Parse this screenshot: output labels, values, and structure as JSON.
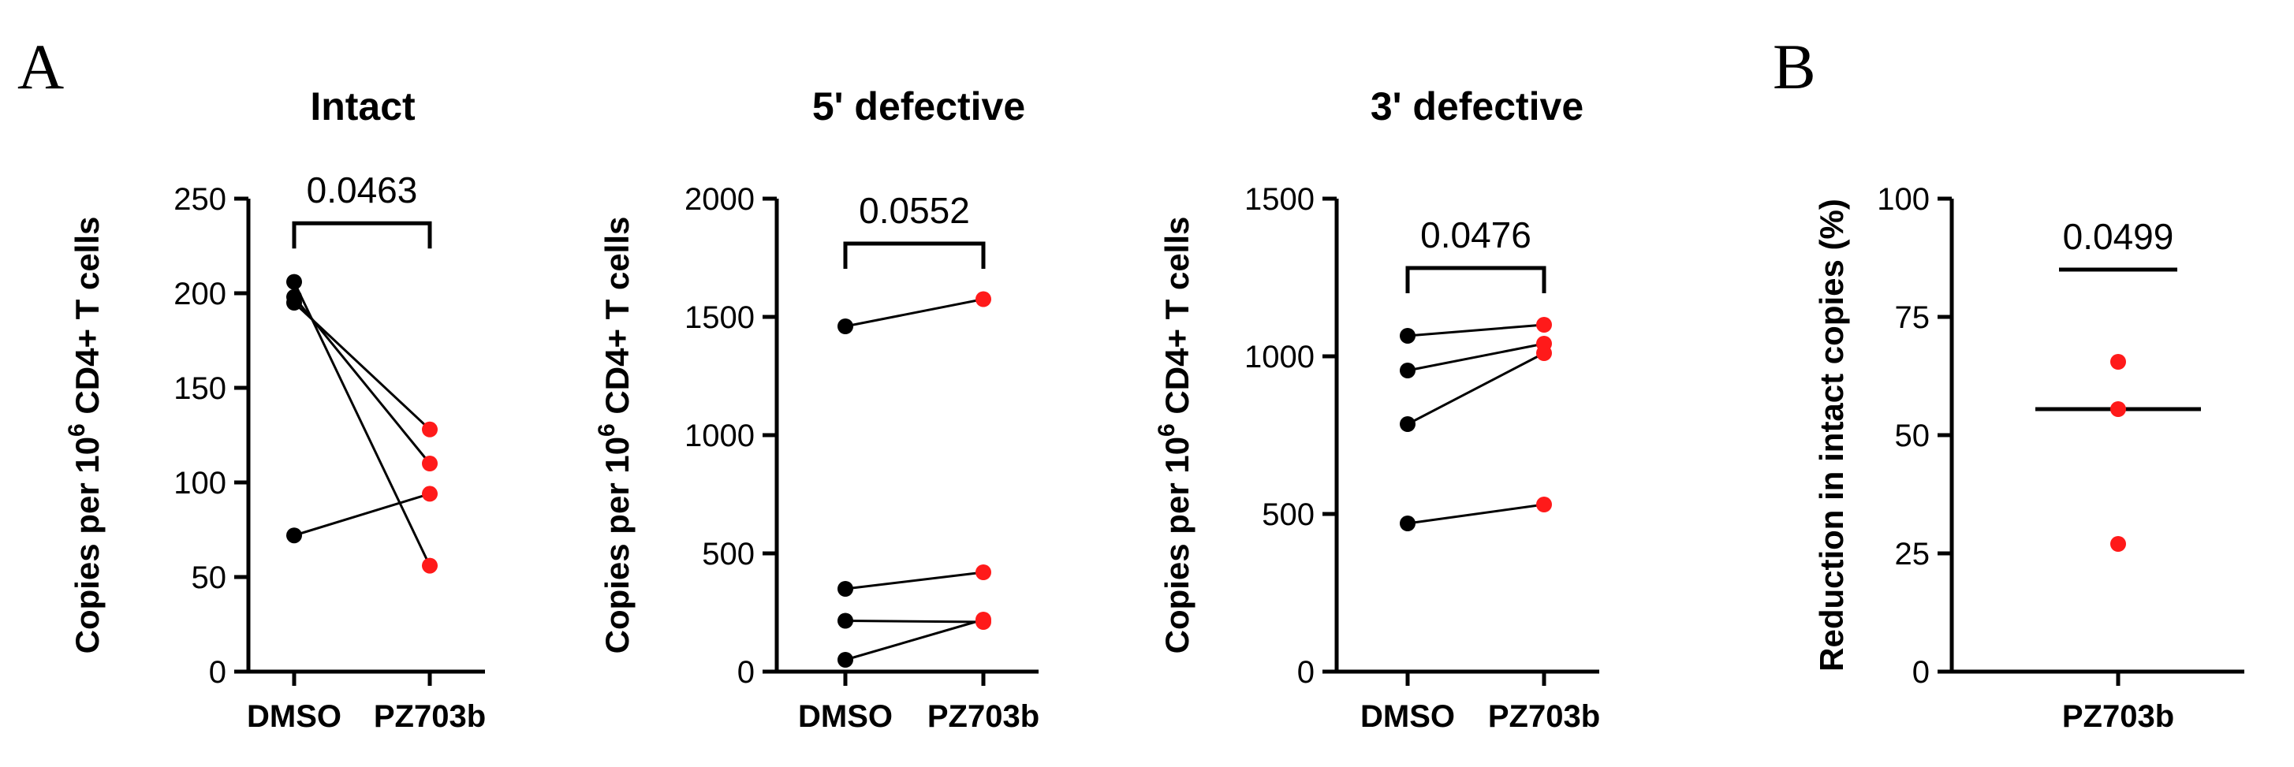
{
  "panel_letters": {
    "a": "A",
    "b": "B"
  },
  "colors": {
    "dmso": "#000000",
    "pz703b": "#ff1a1a",
    "axis": "#000000"
  },
  "chart_data": [
    {
      "type": "scatter",
      "subtype": "paired",
      "title": "Intact",
      "ylabel": "Copies per 10⁶ CD4+ T cells",
      "ylim": [
        0,
        250
      ],
      "yticks": [
        0,
        50,
        100,
        150,
        200,
        250
      ],
      "categories": [
        "DMSO",
        "PZ703b"
      ],
      "pairs": [
        [
          206,
          56
        ],
        [
          198,
          110
        ],
        [
          195,
          128
        ],
        [
          72,
          94
        ]
      ],
      "p_value": "0.0463",
      "bracket_y": 237
    },
    {
      "type": "scatter",
      "subtype": "paired",
      "title": "5' defective",
      "ylabel": "Copies per 10⁶ CD4+ T cells",
      "ylim": [
        0,
        2000
      ],
      "yticks": [
        0,
        500,
        1000,
        1500,
        2000
      ],
      "categories": [
        "DMSO",
        "PZ703b"
      ],
      "pairs": [
        [
          1460,
          1575
        ],
        [
          350,
          420
        ],
        [
          215,
          210
        ],
        [
          50,
          220
        ]
      ],
      "p_value": "0.0552",
      "bracket_y": 1810
    },
    {
      "type": "scatter",
      "subtype": "paired",
      "title": "3' defective",
      "ylabel": "Copies per 10⁶ CD4+ T cells",
      "ylim": [
        0,
        1500
      ],
      "yticks": [
        0,
        500,
        1000,
        1500
      ],
      "categories": [
        "DMSO",
        "PZ703b"
      ],
      "pairs": [
        [
          1065,
          1100
        ],
        [
          955,
          1040
        ],
        [
          785,
          1010
        ],
        [
          470,
          530
        ]
      ],
      "p_value": "0.0476",
      "bracket_y": 1280
    },
    {
      "type": "scatter",
      "subtype": "column",
      "title": "",
      "ylabel": "Reduction in intact copies (%)",
      "ylim": [
        0,
        100
      ],
      "yticks": [
        0,
        25,
        50,
        75,
        100
      ],
      "categories": [
        "PZ703b"
      ],
      "values": [
        65.5,
        55.5,
        27
      ],
      "median": 55.5,
      "p_value": "0.0499",
      "bracket_y": 85
    }
  ]
}
